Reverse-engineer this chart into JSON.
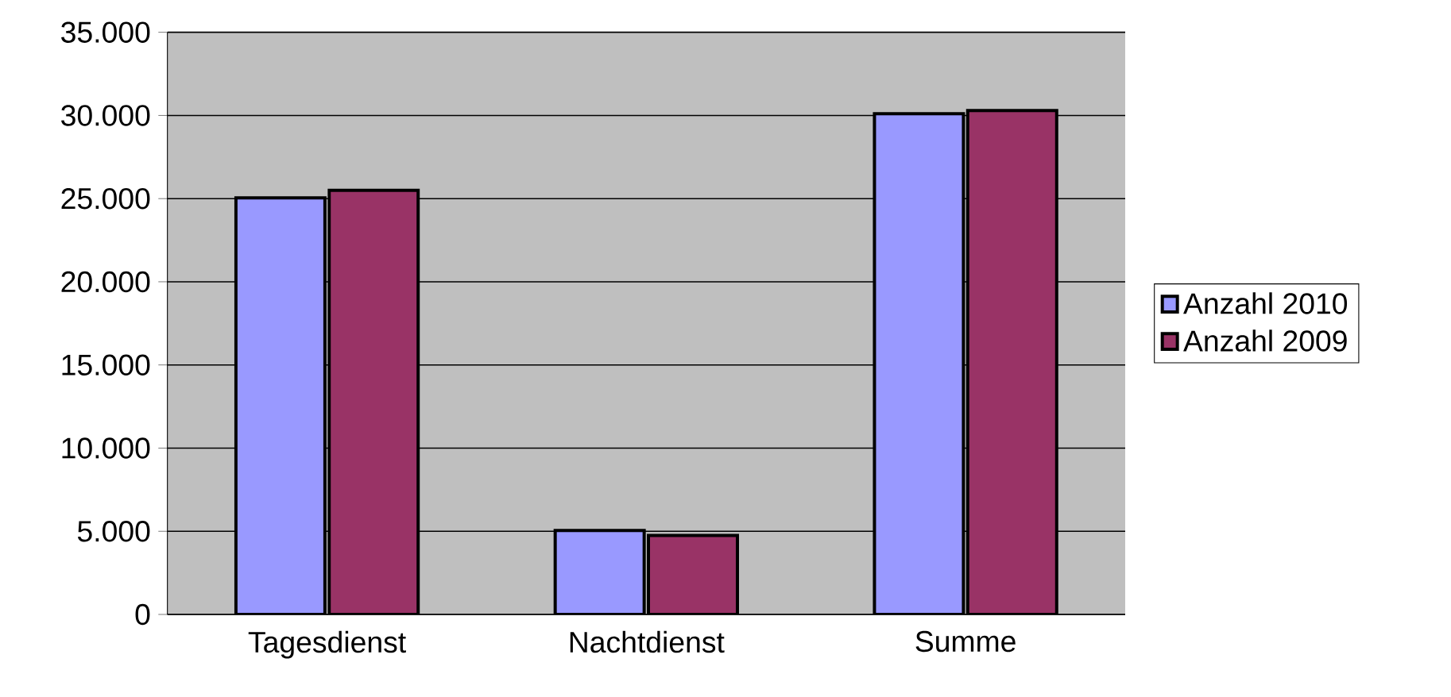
{
  "chart_data": {
    "type": "bar",
    "categories": [
      "Tagesdienst",
      "Nachtdienst",
      "Summe"
    ],
    "series": [
      {
        "name": "Anzahl 2010",
        "color": "#9999ff",
        "values": [
          25050,
          5050,
          30100
        ]
      },
      {
        "name": "Anzahl 2009",
        "color": "#993366",
        "values": [
          25500,
          4750,
          30300
        ]
      }
    ],
    "ylim": [
      0,
      35000
    ],
    "yticks": [
      {
        "value": 0,
        "label": "0"
      },
      {
        "value": 5000,
        "label": "5.000"
      },
      {
        "value": 10000,
        "label": "10.000"
      },
      {
        "value": 15000,
        "label": "15.000"
      },
      {
        "value": 20000,
        "label": "20.000"
      },
      {
        "value": 25000,
        "label": "25.000"
      },
      {
        "value": 30000,
        "label": "30.000"
      },
      {
        "value": 35000,
        "label": "35.000"
      }
    ],
    "grid": "y",
    "legend": "right"
  }
}
